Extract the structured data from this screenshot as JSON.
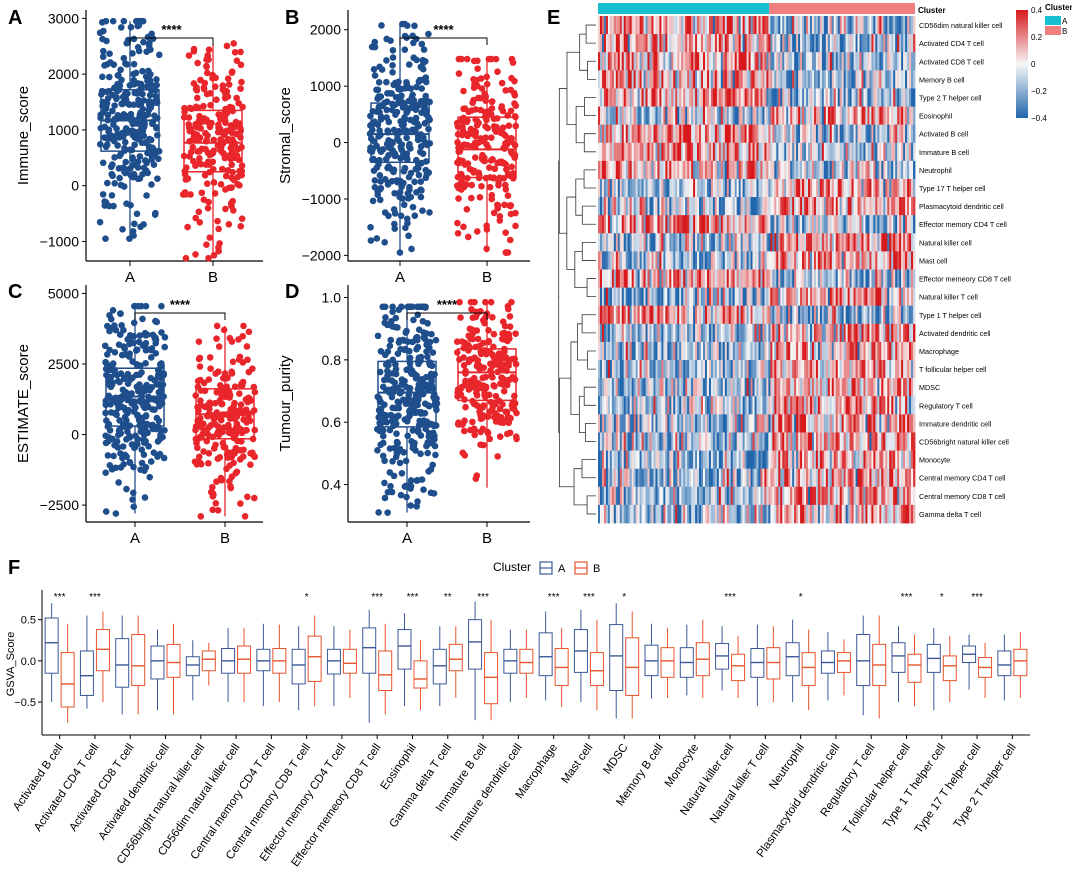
{
  "colors": {
    "cluster_a": "#1f4e8c",
    "cluster_b": "#e8262b",
    "gsva_a": "#3b5998",
    "gsva_b": "#e8542b",
    "bar_a": "#17becf",
    "bar_b": "#f08080",
    "heat_low": "#2166ac",
    "heat_mid": "#f7f7f7",
    "heat_high": "#d7191c"
  },
  "chart_data": [
    {
      "panel": "A",
      "type": "boxplot",
      "categories": [
        "A",
        "B"
      ],
      "ylabel": "Immune_score",
      "ylim": [
        -1350,
        3150
      ],
      "yticks": [
        -1000,
        0,
        1000,
        2000,
        3000
      ],
      "yticklabels": [
        "−1000",
        "0",
        "1000",
        "2000",
        "3000"
      ],
      "boxes": [
        {
          "group": "A",
          "min": -950,
          "q1": 620,
          "median": 1170,
          "q3": 1720,
          "max": 2950,
          "count": 300
        },
        {
          "group": "B",
          "min": -1300,
          "q1": 250,
          "median": 770,
          "q3": 1350,
          "max": 2550,
          "count": 230
        }
      ],
      "significance": "****"
    },
    {
      "panel": "B",
      "type": "boxplot",
      "categories": [
        "A",
        "B"
      ],
      "ylabel": "Stromal_score",
      "ylim": [
        -2100,
        2350
      ],
      "yticks": [
        -2000,
        -1000,
        0,
        1000,
        2000
      ],
      "yticklabels": [
        "−2000",
        "−1000",
        "0",
        "1000",
        "2000"
      ],
      "boxes": [
        {
          "group": "A",
          "min": -1950,
          "q1": -350,
          "median": 150,
          "q3": 700,
          "max": 2100,
          "count": 300
        },
        {
          "group": "B",
          "min": -1950,
          "q1": -620,
          "median": -120,
          "q3": 450,
          "max": 1480,
          "count": 230
        }
      ],
      "significance": "****"
    },
    {
      "panel": "C",
      "type": "boxplot",
      "categories": [
        "A",
        "B"
      ],
      "ylabel": "ESTIMATE_score",
      "ylim": [
        -3100,
        5300
      ],
      "yticks": [
        -2500,
        0,
        2500,
        5000
      ],
      "yticklabels": [
        "−2500",
        "0",
        "2500",
        "5000"
      ],
      "boxes": [
        {
          "group": "A",
          "min": -2800,
          "q1": 300,
          "median": 1350,
          "q3": 2350,
          "max": 4550,
          "count": 300
        },
        {
          "group": "B",
          "min": -2900,
          "q1": -150,
          "median": 720,
          "q3": 1620,
          "max": 3850,
          "count": 230
        }
      ],
      "significance": "****"
    },
    {
      "panel": "D",
      "type": "boxplot",
      "categories": [
        "A",
        "B"
      ],
      "ylabel": "Tumour_purity",
      "ylim": [
        0.28,
        1.04
      ],
      "yticks": [
        0.4,
        0.6,
        0.8,
        1.0
      ],
      "yticklabels": [
        "0.4",
        "0.6",
        "0.8",
        "1.0"
      ],
      "boxes": [
        {
          "group": "A",
          "min": 0.31,
          "q1": 0.585,
          "median": 0.695,
          "q3": 0.795,
          "max": 0.97,
          "count": 300
        },
        {
          "group": "B",
          "min": 0.39,
          "q1": 0.67,
          "median": 0.76,
          "q3": 0.835,
          "max": 0.985,
          "count": 230
        }
      ],
      "significance": "****"
    },
    {
      "panel": "E",
      "type": "heatmap",
      "annotation_title": "Cluster",
      "legend_title": "Cluster",
      "legend_entries": [
        "A",
        "B"
      ],
      "color_scale": {
        "min": -0.4,
        "max": 0.4,
        "ticks": [
          0.4,
          0.2,
          0,
          -0.2,
          -0.4
        ],
        "ticklabels": [
          "0.4",
          "0.2",
          "0",
          "−0.2",
          "−0.4"
        ]
      },
      "cluster_A_fraction": 0.54,
      "row_high_in_A": [
        1,
        1,
        1,
        1,
        1,
        0,
        1,
        1,
        1,
        0,
        0,
        1,
        0,
        0,
        1,
        0,
        1,
        0,
        0,
        0,
        0,
        0,
        0,
        0,
        0,
        0,
        0,
        0
      ],
      "rows": [
        "CD56dim natural killer cell",
        "Activated CD4 T cell",
        "Activated CD8 T cell",
        "Memory B cell",
        "Type 2 T helper cell",
        "Eosinophil",
        "Activated B cell",
        "Immature  B cell",
        "Neutrophil",
        "Type 17 T helper cell",
        "Plasmacytoid dendritic cell",
        "Effector memory CD4 T cell",
        "Natural killer cell",
        "Mast cell",
        "Effector memeory CD8 T cell",
        "Natural killer T cell",
        "Type 1 T helper cell",
        "Activated dendritic cell",
        "Macrophage",
        "T follicular helper cell",
        "MDSC",
        "Regulatory T cell",
        "Immature dendritic cell",
        "CD56bright natural killer cell",
        "Monocyte",
        "Central memory CD4 T cell",
        "Central memory CD8 T cell",
        "Gamma delta T cell"
      ]
    },
    {
      "panel": "F",
      "type": "boxplot",
      "legend_title": "Cluster",
      "legend_entries": [
        "A",
        "B"
      ],
      "ylabel": "GSVA_Score",
      "ylim": [
        -0.9,
        0.86
      ],
      "yticks": [
        -0.5,
        0,
        0.5
      ],
      "yticklabels": [
        "−0.5",
        "0.0",
        "0.5"
      ],
      "categories": [
        "Activated B cell",
        "Activated CD4 T cell",
        "Activated CD8 T cell",
        "Activated dendritic cell",
        "CD56bright natural killer cell",
        "CD56dim natural killer cell",
        "Central memory CD4 T cell",
        "Central memory CD8 T cell",
        "Effector memory CD4 T cell",
        "Effector memeory CD8 T cell",
        "Eosinophil",
        "Gamma delta T cell",
        "Immature  B cell",
        "Immature dendritic cell",
        "Macrophage",
        "Mast cell",
        "MDSC",
        "Memory B cell",
        "Monocyte",
        "Natural killer cell",
        "Natural killer T cell",
        "Neutrophil",
        "Plasmacytoid dendritic cell",
        "Regulatory T cell",
        "T follicular helper cell",
        "Type 1 T helper cell",
        "Type 17 T helper cell",
        "Type 2 T helper cell"
      ],
      "significance": [
        "***",
        "***",
        "",
        "",
        "",
        "",
        "",
        "*",
        "",
        "***",
        "***",
        "**",
        "***",
        "",
        "***",
        "***",
        "*",
        "",
        "",
        "***",
        "",
        "*",
        "",
        "",
        "***",
        "*",
        "***",
        ""
      ],
      "series": [
        {
          "name": "A",
          "boxes": [
            {
              "min": -0.5,
              "q1": -0.15,
              "median": 0.22,
              "q3": 0.52,
              "max": 0.7
            },
            {
              "min": -0.58,
              "q1": -0.42,
              "median": -0.18,
              "q3": 0.12,
              "max": 0.55
            },
            {
              "min": -0.65,
              "q1": -0.32,
              "median": -0.05,
              "q3": 0.27,
              "max": 0.55
            },
            {
              "min": -0.6,
              "q1": -0.22,
              "median": 0.0,
              "q3": 0.18,
              "max": 0.38
            },
            {
              "min": -0.48,
              "q1": -0.18,
              "median": -0.05,
              "q3": 0.05,
              "max": 0.25
            },
            {
              "min": -0.5,
              "q1": -0.15,
              "median": 0.0,
              "q3": 0.15,
              "max": 0.4
            },
            {
              "min": -0.55,
              "q1": -0.12,
              "median": 0.0,
              "q3": 0.14,
              "max": 0.45
            },
            {
              "min": -0.6,
              "q1": -0.28,
              "median": -0.05,
              "q3": 0.14,
              "max": 0.42
            },
            {
              "min": -0.55,
              "q1": -0.16,
              "median": 0.0,
              "q3": 0.14,
              "max": 0.42
            },
            {
              "min": -0.75,
              "q1": -0.15,
              "median": 0.16,
              "q3": 0.4,
              "max": 0.62
            },
            {
              "min": -0.55,
              "q1": -0.1,
              "median": 0.18,
              "q3": 0.38,
              "max": 0.58
            },
            {
              "min": -0.55,
              "q1": -0.28,
              "median": -0.06,
              "q3": 0.14,
              "max": 0.42
            },
            {
              "min": -0.72,
              "q1": -0.1,
              "median": 0.23,
              "q3": 0.5,
              "max": 0.72
            },
            {
              "min": -0.5,
              "q1": -0.15,
              "median": 0.0,
              "q3": 0.14,
              "max": 0.38
            },
            {
              "min": -0.48,
              "q1": -0.18,
              "median": 0.05,
              "q3": 0.34,
              "max": 0.6
            },
            {
              "min": -0.5,
              "q1": -0.14,
              "median": 0.12,
              "q3": 0.38,
              "max": 0.62
            },
            {
              "min": -0.7,
              "q1": -0.36,
              "median": 0.06,
              "q3": 0.44,
              "max": 0.7
            },
            {
              "min": -0.46,
              "q1": -0.18,
              "median": 0.0,
              "q3": 0.19,
              "max": 0.45
            },
            {
              "min": -0.42,
              "q1": -0.2,
              "median": -0.02,
              "q3": 0.16,
              "max": 0.44
            },
            {
              "min": -0.36,
              "q1": -0.1,
              "median": 0.06,
              "q3": 0.21,
              "max": 0.42
            },
            {
              "min": -0.55,
              "q1": -0.2,
              "median": -0.02,
              "q3": 0.15,
              "max": 0.44
            },
            {
              "min": -0.5,
              "q1": -0.18,
              "median": 0.05,
              "q3": 0.22,
              "max": 0.5
            },
            {
              "min": -0.48,
              "q1": -0.15,
              "median": -0.02,
              "q3": 0.12,
              "max": 0.35
            },
            {
              "min": -0.66,
              "q1": -0.3,
              "median": 0.0,
              "q3": 0.32,
              "max": 0.55
            },
            {
              "min": -0.5,
              "q1": -0.14,
              "median": 0.06,
              "q3": 0.22,
              "max": 0.42
            },
            {
              "min": -0.6,
              "q1": -0.14,
              "median": 0.03,
              "q3": 0.2,
              "max": 0.4
            },
            {
              "min": -0.35,
              "q1": -0.02,
              "median": 0.08,
              "q3": 0.18,
              "max": 0.32
            },
            {
              "min": -0.48,
              "q1": -0.18,
              "median": -0.05,
              "q3": 0.12,
              "max": 0.32
            }
          ]
        },
        {
          "name": "B",
          "boxes": [
            {
              "min": -0.75,
              "q1": -0.56,
              "median": -0.28,
              "q3": 0.1,
              "max": 0.45
            },
            {
              "min": -0.5,
              "q1": -0.12,
              "median": 0.14,
              "q3": 0.38,
              "max": 0.6
            },
            {
              "min": -0.65,
              "q1": -0.3,
              "median": -0.06,
              "q3": 0.32,
              "max": 0.55
            },
            {
              "min": -0.65,
              "q1": -0.2,
              "median": -0.02,
              "q3": 0.2,
              "max": 0.45
            },
            {
              "min": -0.3,
              "q1": -0.12,
              "median": 0.02,
              "q3": 0.12,
              "max": 0.22
            },
            {
              "min": -0.5,
              "q1": -0.15,
              "median": 0.02,
              "q3": 0.18,
              "max": 0.4
            },
            {
              "min": -0.5,
              "q1": -0.15,
              "median": 0.0,
              "q3": 0.15,
              "max": 0.44
            },
            {
              "min": -0.55,
              "q1": -0.25,
              "median": 0.05,
              "q3": 0.3,
              "max": 0.55
            },
            {
              "min": -0.45,
              "q1": -0.15,
              "median": -0.03,
              "q3": 0.14,
              "max": 0.38
            },
            {
              "min": -0.65,
              "q1": -0.36,
              "median": -0.17,
              "q3": 0.12,
              "max": 0.45
            },
            {
              "min": -0.6,
              "q1": -0.33,
              "median": -0.22,
              "q3": 0.0,
              "max": 0.25
            },
            {
              "min": -0.45,
              "q1": -0.12,
              "median": 0.02,
              "q3": 0.2,
              "max": 0.42
            },
            {
              "min": -0.72,
              "q1": -0.52,
              "median": -0.2,
              "q3": 0.1,
              "max": 0.5
            },
            {
              "min": -0.45,
              "q1": -0.15,
              "median": -0.02,
              "q3": 0.14,
              "max": 0.38
            },
            {
              "min": -0.56,
              "q1": -0.3,
              "median": -0.08,
              "q3": 0.15,
              "max": 0.4
            },
            {
              "min": -0.6,
              "q1": -0.3,
              "median": -0.12,
              "q3": 0.1,
              "max": 0.5
            },
            {
              "min": -0.7,
              "q1": -0.42,
              "median": -0.08,
              "q3": 0.28,
              "max": 0.6
            },
            {
              "min": -0.45,
              "q1": -0.2,
              "median": 0.0,
              "q3": 0.16,
              "max": 0.4
            },
            {
              "min": -0.45,
              "q1": -0.18,
              "median": 0.02,
              "q3": 0.22,
              "max": 0.5
            },
            {
              "min": -0.45,
              "q1": -0.24,
              "median": -0.06,
              "q3": 0.08,
              "max": 0.3
            },
            {
              "min": -0.5,
              "q1": -0.22,
              "median": -0.02,
              "q3": 0.16,
              "max": 0.42
            },
            {
              "min": -0.6,
              "q1": -0.3,
              "median": -0.08,
              "q3": 0.1,
              "max": 0.38
            },
            {
              "min": -0.42,
              "q1": -0.14,
              "median": 0.0,
              "q3": 0.1,
              "max": 0.26
            },
            {
              "min": -0.7,
              "q1": -0.3,
              "median": -0.05,
              "q3": 0.2,
              "max": 0.55
            },
            {
              "min": -0.55,
              "q1": -0.26,
              "median": -0.05,
              "q3": 0.08,
              "max": 0.32
            },
            {
              "min": -0.5,
              "q1": -0.24,
              "median": -0.06,
              "q3": 0.06,
              "max": 0.3
            },
            {
              "min": -0.45,
              "q1": -0.2,
              "median": -0.08,
              "q3": 0.04,
              "max": 0.22
            },
            {
              "min": -0.45,
              "q1": -0.18,
              "median": 0.0,
              "q3": 0.14,
              "max": 0.35
            }
          ]
        }
      ]
    }
  ]
}
